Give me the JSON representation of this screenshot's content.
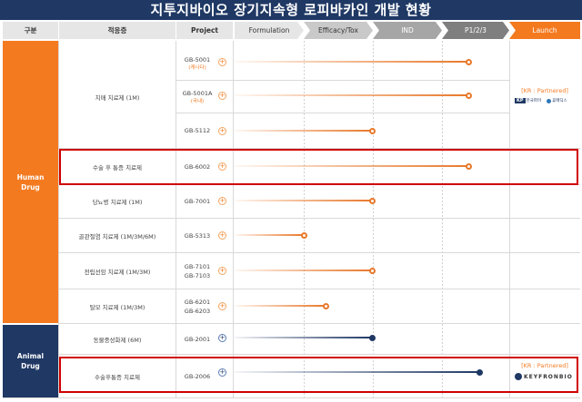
{
  "title": "지투지바이오 장기지속형 로피바카인 개발 현황",
  "headers": {
    "category": "구분",
    "indication": "적응증",
    "project": "Project"
  },
  "phases": [
    {
      "label": "Formulation",
      "bg": "#e7e6e6",
      "fg": "#333333"
    },
    {
      "label": "Efficacy/Tox",
      "bg": "#c9c9c9",
      "fg": "#333333"
    },
    {
      "label": "IND",
      "bg": "#a6a6a6",
      "fg": "#ffffff"
    },
    {
      "label": "P1/2/3",
      "bg": "#7f7f7f",
      "fg": "#ffffff"
    },
    {
      "label": "Launch",
      "bg": "#f47a20",
      "fg": "#ffffff"
    }
  ],
  "categories": {
    "human": "Human\nDrug",
    "animal": "Animal\nDrug"
  },
  "rows": [
    {
      "indication": "치매 치료제 (1M)",
      "projects": [
        "GB-5001",
        "GB-5001A",
        "GB-5112"
      ],
      "project_notes": [
        "(캐나다)",
        "(국내)",
        ""
      ]
    },
    {
      "indication": "수술 후 통증 치료제",
      "projects": [
        "GB-6002"
      ]
    },
    {
      "indication": "당뇨병 치료제 (1M)",
      "projects": [
        "GB-7001"
      ]
    },
    {
      "indication": "골관절염 치료제 (1M/3M/6M)",
      "projects": [
        "GB-5313"
      ]
    },
    {
      "indication": "전립선암 치료제 (1M/3M)",
      "projects": [
        "GB-7101",
        "GB-7103"
      ]
    },
    {
      "indication": "탈모 치료제 (1M/3M)",
      "projects": [
        "GB-6201",
        "GB-6203"
      ]
    },
    {
      "indication": "동물중성화제 (6M)",
      "projects": [
        "GB-2001"
      ]
    },
    {
      "indication": "수술후통증 치료제",
      "projects": [
        "GB-2006"
      ]
    }
  ],
  "partners": {
    "human": {
      "label": "[KR : Partnered]",
      "logo1_mark": "KP",
      "logo1_text": "한국파마",
      "logo2_text": "휴메딕스"
    },
    "animal": {
      "label": "[KR : Partnered]",
      "logo_text": "KEYFRONBIO"
    }
  },
  "progress": [
    {
      "project": "GB-5001",
      "phase_fraction": 0.85,
      "series": "human"
    },
    {
      "project": "GB-5001A",
      "phase_fraction": 0.85,
      "series": "human"
    },
    {
      "project": "GB-5112",
      "phase_fraction": 0.5,
      "series": "human"
    },
    {
      "project": "GB-6002",
      "phase_fraction": 0.85,
      "series": "human"
    },
    {
      "project": "GB-7001",
      "phase_fraction": 0.5,
      "series": "human"
    },
    {
      "project": "GB-5313",
      "phase_fraction": 0.25,
      "series": "human"
    },
    {
      "project": "GB-7101/7103",
      "phase_fraction": 0.5,
      "series": "human"
    },
    {
      "project": "GB-6201/6203",
      "phase_fraction": 0.33,
      "series": "human"
    },
    {
      "project": "GB-2001",
      "phase_fraction": 0.5,
      "series": "animal"
    },
    {
      "project": "GB-2006",
      "phase_fraction": 0.89,
      "series": "animal"
    }
  ]
}
